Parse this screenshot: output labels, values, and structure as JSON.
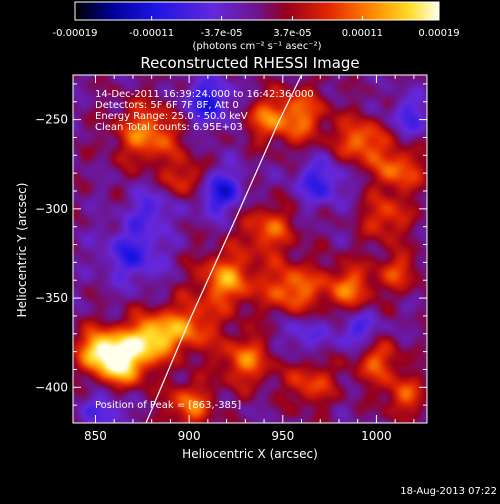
{
  "chart_data": {
    "type": "heatmap",
    "title": "Reconstructed RHESSI Image",
    "xlabel": "Heliocentric X (arcsec)",
    "ylabel": "Heliocentric Y (arcsec)",
    "xlim": [
      838,
      1027
    ],
    "ylim": [
      -420,
      -225
    ],
    "x_ticks": [
      850,
      900,
      950,
      1000
    ],
    "y_ticks": [
      -400,
      -350,
      -300,
      -250
    ],
    "colorbar": {
      "range": [
        -0.00019,
        0.00019
      ],
      "tick_values": [
        -0.00019,
        -0.00011,
        -3.7e-05,
        3.7e-05,
        0.00011,
        0.00019
      ],
      "tick_labels": [
        "-0.00019",
        "-0.00011",
        "-3.7e-05",
        "3.7e-05",
        "0.00011",
        "0.00019"
      ],
      "units_label": "(photons cm⁻² s⁻¹ asec⁻²)"
    },
    "annotations": {
      "time_range": "14-Dec-2011 16:39:24.000 to 16:42:36.000",
      "detectors": "Detectors: 5F 6F 7F 8F, Att 0",
      "energy_range": "Energy Range: 25.0 - 50.0 keV",
      "algorithm": "Clean      Total counts: 6.95E+03",
      "peak": "Position of Peak = [863,-385]"
    },
    "peak_position": [
      863,
      -385
    ],
    "limb_curve": [
      [
        877,
        -420
      ],
      [
        900,
        -363
      ],
      [
        925,
        -305
      ],
      [
        947,
        -253
      ],
      [
        960,
        -225
      ]
    ],
    "blobs": [
      {
        "x": 863,
        "y": -385,
        "amp": 1.0,
        "s": 10
      },
      {
        "x": 880,
        "y": -372,
        "amp": 0.8,
        "s": 9
      },
      {
        "x": 851,
        "y": -378,
        "amp": 0.6,
        "s": 8
      },
      {
        "x": 900,
        "y": -366,
        "amp": 0.55,
        "s": 10
      },
      {
        "x": 878,
        "y": -258,
        "amp": 0.6,
        "s": 12
      },
      {
        "x": 900,
        "y": -284,
        "amp": 0.5,
        "s": 8
      },
      {
        "x": 958,
        "y": -248,
        "amp": 0.55,
        "s": 11
      },
      {
        "x": 992,
        "y": -262,
        "amp": 0.6,
        "s": 9
      },
      {
        "x": 1012,
        "y": -278,
        "amp": 0.55,
        "s": 9
      },
      {
        "x": 1005,
        "y": -305,
        "amp": 0.45,
        "s": 9
      },
      {
        "x": 942,
        "y": -312,
        "amp": 0.5,
        "s": 10
      },
      {
        "x": 920,
        "y": -340,
        "amp": 0.65,
        "s": 11
      },
      {
        "x": 955,
        "y": -345,
        "amp": 0.6,
        "s": 10
      },
      {
        "x": 985,
        "y": -345,
        "amp": 0.55,
        "s": 10
      },
      {
        "x": 1012,
        "y": -335,
        "amp": 0.4,
        "s": 8
      },
      {
        "x": 930,
        "y": -385,
        "amp": 0.55,
        "s": 10
      },
      {
        "x": 965,
        "y": -398,
        "amp": 0.45,
        "s": 9
      },
      {
        "x": 1000,
        "y": -385,
        "amp": 0.5,
        "s": 9
      },
      {
        "x": 1015,
        "y": -405,
        "amp": 0.45,
        "s": 8
      },
      {
        "x": 900,
        "y": -410,
        "amp": 0.55,
        "s": 9
      },
      {
        "x": 940,
        "y": -250,
        "amp": 0.4,
        "s": 8
      },
      {
        "x": 910,
        "y": -240,
        "amp": -0.55,
        "s": 9
      },
      {
        "x": 915,
        "y": -290,
        "amp": -0.6,
        "s": 9
      },
      {
        "x": 870,
        "y": -325,
        "amp": -0.45,
        "s": 11
      },
      {
        "x": 970,
        "y": -285,
        "amp": -0.45,
        "s": 9
      },
      {
        "x": 880,
        "y": -300,
        "amp": -0.35,
        "s": 8
      },
      {
        "x": 1018,
        "y": -248,
        "amp": -0.35,
        "s": 8
      },
      {
        "x": 990,
        "y": -368,
        "amp": -0.4,
        "s": 9
      },
      {
        "x": 855,
        "y": -412,
        "amp": -0.35,
        "s": 8
      },
      {
        "x": 960,
        "y": -370,
        "amp": -0.3,
        "s": 8
      }
    ]
  },
  "footer": {
    "timestamp": "18-Aug-2013 07:22"
  }
}
